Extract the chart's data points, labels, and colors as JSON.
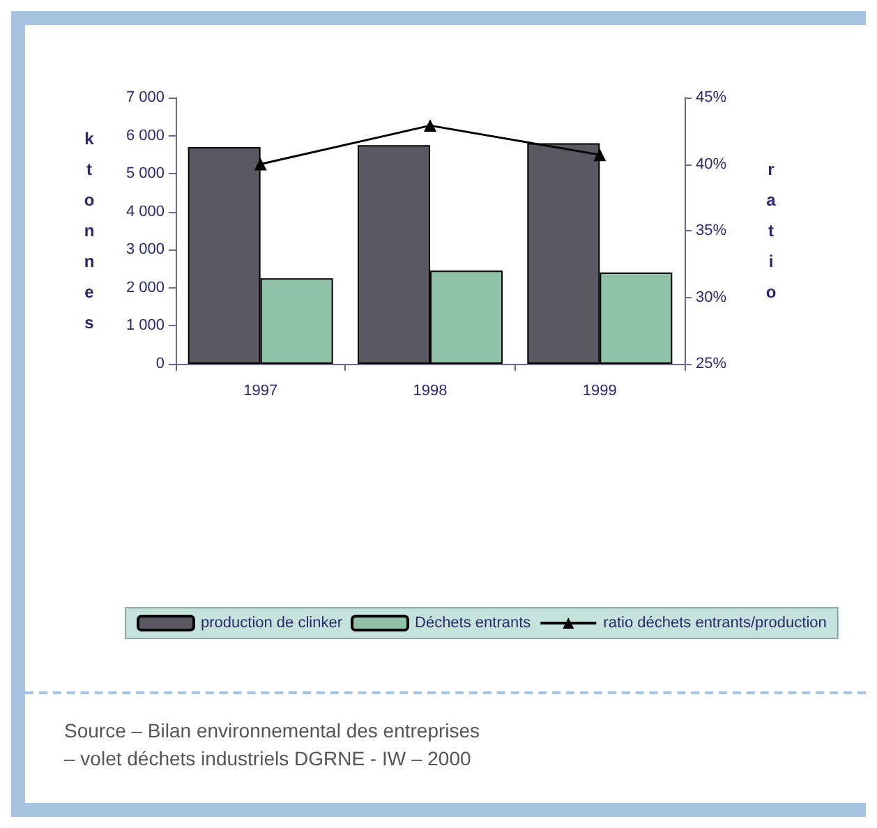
{
  "chart_data": {
    "type": "bar",
    "categories": [
      "1997",
      "1998",
      "1999"
    ],
    "ylabel": "ktonnes",
    "y2label": "ratio",
    "series": [
      {
        "name": "production de clinker",
        "color": "#5a5862",
        "values": [
          5700,
          5750,
          5800
        ]
      },
      {
        "name": "Déchets entrants",
        "color": "#8fc1a6",
        "values": [
          2250,
          2450,
          2400
        ]
      },
      {
        "name": "ratio déchets entrants/production",
        "type": "line",
        "axis": "y2",
        "color": "#000000",
        "values": [
          40.0,
          42.9,
          40.7
        ]
      }
    ],
    "ylim": [
      0,
      7000
    ],
    "yticks": [
      {
        "value": 0,
        "label": "0"
      },
      {
        "value": 1000,
        "label": "1 000"
      },
      {
        "value": 2000,
        "label": "2 000"
      },
      {
        "value": 3000,
        "label": "3 000"
      },
      {
        "value": 4000,
        "label": "4 000"
      },
      {
        "value": 5000,
        "label": "5 000"
      },
      {
        "value": 6000,
        "label": "6 000"
      },
      {
        "value": 7000,
        "label": "7 000"
      }
    ],
    "y2lim": [
      25,
      45
    ],
    "y2ticks": [
      {
        "value": 25,
        "label": "25%"
      },
      {
        "value": 30,
        "label": "30%"
      },
      {
        "value": 35,
        "label": "35%"
      },
      {
        "value": 40,
        "label": "40%"
      },
      {
        "value": 45,
        "label": "45%"
      }
    ],
    "grid": false,
    "legend": "bottom",
    "marker": "triangle",
    "annotations": [
      "Source – Bilan environnemental des entreprises",
      "– volet déchets industriels DGRNE - IW – 2000"
    ]
  }
}
